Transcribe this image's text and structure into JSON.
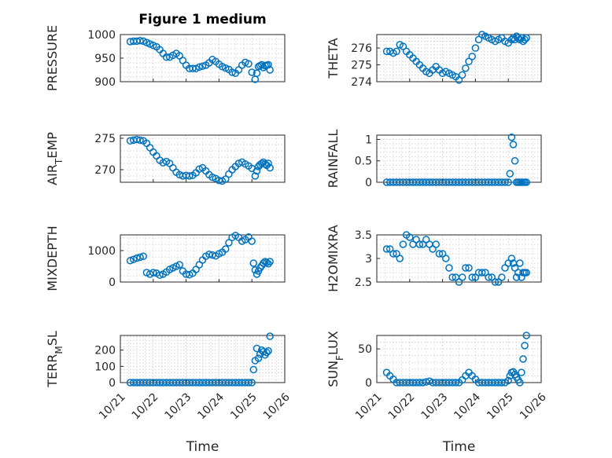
{
  "figure_title": "Figure 1 medium",
  "x_axis_label": "Time",
  "x_tick_labels": [
    "10/21",
    "10/22",
    "10/23",
    "10/24",
    "10/25",
    "10/26"
  ],
  "marker_color": "#0072bd",
  "chart_data": [
    {
      "id": "pressure",
      "type": "scatter",
      "title": "Figure 1 medium",
      "ylabel_parts": [
        "PRESSURE"
      ],
      "xlim": [
        0,
        5
      ],
      "ylim": [
        900,
        1000
      ],
      "yticks": [
        900,
        950,
        1000
      ],
      "x": [
        0.3,
        0.4,
        0.5,
        0.6,
        0.7,
        0.8,
        0.9,
        1.0,
        1.1,
        1.2,
        1.3,
        1.4,
        1.5,
        1.6,
        1.7,
        1.8,
        1.9,
        2.0,
        2.1,
        2.2,
        2.3,
        2.4,
        2.5,
        2.6,
        2.7,
        2.8,
        2.9,
        3.0,
        3.1,
        3.2,
        3.3,
        3.4,
        3.5,
        3.6,
        3.7,
        3.8,
        3.9,
        4.0,
        4.1,
        4.15,
        4.2,
        4.25,
        4.3,
        4.35,
        4.4,
        4.45,
        4.5,
        4.55
      ],
      "y": [
        985,
        986,
        986,
        987,
        986,
        983,
        980,
        977,
        974,
        968,
        960,
        952,
        952,
        956,
        960,
        955,
        945,
        935,
        928,
        928,
        928,
        931,
        933,
        935,
        940,
        947,
        943,
        937,
        932,
        929,
        926,
        920,
        918,
        925,
        935,
        941,
        938,
        920,
        905,
        918,
        932,
        934,
        936,
        930,
        934,
        935,
        936,
        925
      ]
    },
    {
      "id": "theta",
      "type": "scatter",
      "ylabel_parts": [
        "THETA"
      ],
      "xlim": [
        0,
        5
      ],
      "ylim": [
        274,
        276.8
      ],
      "yticks": [
        274,
        275,
        276
      ],
      "x": [
        0.3,
        0.4,
        0.5,
        0.6,
        0.7,
        0.8,
        0.9,
        1.0,
        1.1,
        1.2,
        1.3,
        1.4,
        1.5,
        1.6,
        1.7,
        1.8,
        1.9,
        2.0,
        2.1,
        2.2,
        2.3,
        2.4,
        2.5,
        2.6,
        2.7,
        2.8,
        2.9,
        3.0,
        3.1,
        3.2,
        3.3,
        3.4,
        3.5,
        3.6,
        3.7,
        3.8,
        3.9,
        4.0,
        4.1,
        4.15,
        4.2,
        4.25,
        4.3,
        4.35,
        4.4,
        4.45,
        4.5,
        4.55
      ],
      "y": [
        275.8,
        275.8,
        275.7,
        275.8,
        276.2,
        276.1,
        275.8,
        275.6,
        275.4,
        275.2,
        275.0,
        274.8,
        274.6,
        274.5,
        274.7,
        274.9,
        274.7,
        274.5,
        274.6,
        274.5,
        274.4,
        274.3,
        274.1,
        274.4,
        274.8,
        275.2,
        275.5,
        276.0,
        276.5,
        276.8,
        276.7,
        276.6,
        276.5,
        276.4,
        276.5,
        276.6,
        276.4,
        276.3,
        276.5,
        276.6,
        276.5,
        276.7,
        276.6,
        276.5,
        276.6,
        276.4,
        276.5,
        276.6
      ]
    },
    {
      "id": "air_temp",
      "type": "scatter",
      "ylabel_parts": [
        "AIR",
        "T",
        "EMP"
      ],
      "xlim": [
        0,
        5
      ],
      "ylim": [
        268,
        275.5
      ],
      "yticks": [
        270,
        275
      ],
      "x": [
        0.3,
        0.4,
        0.5,
        0.6,
        0.7,
        0.8,
        0.9,
        1.0,
        1.1,
        1.2,
        1.3,
        1.4,
        1.5,
        1.6,
        1.7,
        1.8,
        1.9,
        2.0,
        2.1,
        2.2,
        2.3,
        2.4,
        2.5,
        2.6,
        2.7,
        2.8,
        2.9,
        3.0,
        3.1,
        3.2,
        3.3,
        3.4,
        3.5,
        3.6,
        3.7,
        3.8,
        3.9,
        4.0,
        4.1,
        4.15,
        4.2,
        4.25,
        4.3,
        4.35,
        4.4,
        4.45,
        4.5,
        4.55
      ],
      "y": [
        274.6,
        274.7,
        274.8,
        274.7,
        274.6,
        274.2,
        273.5,
        272.8,
        272.2,
        271.5,
        271.1,
        271.3,
        271.0,
        270.3,
        269.6,
        269.2,
        269.0,
        269.1,
        269.0,
        269.1,
        269.5,
        270.1,
        270.3,
        269.8,
        269.2,
        268.8,
        268.6,
        268.3,
        268.2,
        268.5,
        269.3,
        270.0,
        270.5,
        271.0,
        271.2,
        270.9,
        270.6,
        270.2,
        269.0,
        269.8,
        270.5,
        270.8,
        271.0,
        271.2,
        270.9,
        270.7,
        271.0,
        270.3
      ]
    },
    {
      "id": "rainfall",
      "type": "scatter",
      "ylabel_parts": [
        "RAINFALL"
      ],
      "xlim": [
        0,
        5
      ],
      "ylim": [
        0,
        1.1
      ],
      "yticks": [
        0,
        0.5,
        1
      ],
      "ytick_labels": [
        "0",
        "0.5",
        "1"
      ],
      "x": [
        0.3,
        0.4,
        0.5,
        0.6,
        0.7,
        0.8,
        0.9,
        1.0,
        1.1,
        1.2,
        1.3,
        1.4,
        1.5,
        1.6,
        1.7,
        1.8,
        1.9,
        2.0,
        2.1,
        2.2,
        2.3,
        2.4,
        2.5,
        2.6,
        2.7,
        2.8,
        2.9,
        3.0,
        3.1,
        3.2,
        3.3,
        3.4,
        3.5,
        3.6,
        3.7,
        3.8,
        3.9,
        4.0,
        4.05,
        4.1,
        4.15,
        4.2,
        4.25,
        4.3,
        4.35,
        4.4,
        4.45,
        4.5,
        4.55
      ],
      "y": [
        0,
        0,
        0,
        0,
        0,
        0,
        0,
        0,
        0,
        0,
        0,
        0,
        0,
        0,
        0,
        0,
        0,
        0,
        0,
        0,
        0,
        0,
        0,
        0,
        0,
        0,
        0,
        0,
        0,
        0,
        0,
        0,
        0,
        0,
        0,
        0,
        0,
        0,
        0.2,
        1.05,
        0.88,
        0.5,
        0,
        0,
        0,
        0,
        0,
        0,
        0
      ]
    },
    {
      "id": "mixdepth",
      "type": "scatter",
      "ylabel_parts": [
        "MIXDEPTH"
      ],
      "xlim": [
        0,
        5
      ],
      "ylim": [
        0,
        1500
      ],
      "yticks": [
        0,
        1000
      ],
      "x": [
        0.3,
        0.4,
        0.5,
        0.6,
        0.7,
        0.8,
        0.9,
        1.0,
        1.1,
        1.2,
        1.3,
        1.4,
        1.5,
        1.6,
        1.7,
        1.8,
        1.9,
        2.0,
        2.1,
        2.2,
        2.3,
        2.4,
        2.5,
        2.6,
        2.7,
        2.8,
        2.9,
        3.0,
        3.1,
        3.2,
        3.3,
        3.4,
        3.5,
        3.6,
        3.7,
        3.8,
        3.9,
        4.0,
        4.05,
        4.1,
        4.15,
        4.2,
        4.25,
        4.3,
        4.35,
        4.4,
        4.45,
        4.5,
        4.55
      ],
      "y": [
        680,
        720,
        760,
        790,
        820,
        300,
        250,
        300,
        280,
        220,
        250,
        320,
        400,
        450,
        500,
        550,
        350,
        250,
        230,
        280,
        400,
        550,
        700,
        820,
        880,
        860,
        830,
        900,
        950,
        1050,
        1250,
        1420,
        1480,
        1420,
        1300,
        1350,
        1430,
        1300,
        600,
        380,
        250,
        350,
        450,
        520,
        600,
        650,
        620,
        580,
        650
      ]
    },
    {
      "id": "h2omixra",
      "type": "scatter",
      "ylabel_parts": [
        "H2OMIXRA"
      ],
      "xlim": [
        0,
        5
      ],
      "ylim": [
        2.5,
        3.5
      ],
      "yticks": [
        2.5,
        3,
        3.5
      ],
      "x": [
        0.3,
        0.4,
        0.5,
        0.6,
        0.7,
        0.8,
        0.9,
        1.0,
        1.1,
        1.2,
        1.3,
        1.4,
        1.5,
        1.6,
        1.7,
        1.8,
        1.9,
        2.0,
        2.1,
        2.2,
        2.3,
        2.4,
        2.5,
        2.6,
        2.7,
        2.8,
        2.9,
        3.0,
        3.1,
        3.2,
        3.3,
        3.4,
        3.5,
        3.6,
        3.7,
        3.8,
        3.9,
        4.0,
        4.1,
        4.15,
        4.2,
        4.25,
        4.3,
        4.35,
        4.4,
        4.45,
        4.5,
        4.55
      ],
      "y": [
        3.2,
        3.2,
        3.1,
        3.1,
        3.0,
        3.3,
        3.5,
        3.45,
        3.3,
        3.4,
        3.3,
        3.3,
        3.4,
        3.3,
        3.2,
        3.3,
        3.1,
        3.1,
        3.0,
        2.8,
        2.6,
        2.6,
        2.5,
        2.6,
        2.8,
        2.8,
        2.6,
        2.6,
        2.7,
        2.7,
        2.7,
        2.6,
        2.6,
        2.5,
        2.5,
        2.6,
        2.8,
        2.9,
        3.0,
        2.9,
        2.8,
        2.6,
        2.7,
        2.9,
        2.6,
        2.7,
        2.7,
        2.7
      ]
    },
    {
      "id": "terr_msl",
      "type": "scatter",
      "ylabel_parts": [
        "TERR",
        "M",
        "SL"
      ],
      "xlim": [
        0,
        5
      ],
      "ylim": [
        0,
        290
      ],
      "yticks": [
        0,
        100,
        200
      ],
      "x": [
        0.3,
        0.4,
        0.5,
        0.6,
        0.7,
        0.8,
        0.9,
        1.0,
        1.1,
        1.2,
        1.3,
        1.4,
        1.5,
        1.6,
        1.7,
        1.8,
        1.9,
        2.0,
        2.1,
        2.2,
        2.3,
        2.4,
        2.5,
        2.6,
        2.7,
        2.8,
        2.9,
        3.0,
        3.1,
        3.2,
        3.3,
        3.4,
        3.5,
        3.6,
        3.7,
        3.8,
        3.9,
        4.0,
        4.05,
        4.1,
        4.15,
        4.2,
        4.25,
        4.3,
        4.35,
        4.4,
        4.45,
        4.5,
        4.55
      ],
      "y": [
        0,
        0,
        0,
        0,
        0,
        0,
        0,
        0,
        0,
        0,
        0,
        0,
        0,
        0,
        0,
        0,
        0,
        0,
        0,
        0,
        0,
        0,
        0,
        0,
        0,
        0,
        0,
        0,
        0,
        0,
        0,
        0,
        0,
        0,
        0,
        0,
        0,
        0,
        80,
        135,
        210,
        150,
        175,
        200,
        190,
        170,
        185,
        195,
        285
      ]
    },
    {
      "id": "sun_flux",
      "type": "scatter",
      "ylabel_parts": [
        "SUN",
        "F",
        "LUX"
      ],
      "xlim": [
        0,
        5
      ],
      "ylim": [
        0,
        70
      ],
      "yticks": [
        0,
        50
      ],
      "x": [
        0.3,
        0.4,
        0.5,
        0.6,
        0.7,
        0.8,
        0.9,
        1.0,
        1.1,
        1.2,
        1.3,
        1.4,
        1.5,
        1.6,
        1.7,
        1.8,
        1.9,
        2.0,
        2.1,
        2.2,
        2.3,
        2.4,
        2.5,
        2.6,
        2.7,
        2.8,
        2.9,
        3.0,
        3.1,
        3.2,
        3.3,
        3.4,
        3.5,
        3.6,
        3.7,
        3.8,
        3.9,
        4.0,
        4.05,
        4.1,
        4.15,
        4.2,
        4.25,
        4.3,
        4.35,
        4.4,
        4.45,
        4.5,
        4.55
      ],
      "y": [
        15,
        10,
        5,
        0,
        0,
        0,
        0,
        0,
        0,
        0,
        0,
        0,
        1,
        2,
        0,
        0,
        0,
        0,
        0,
        0,
        0,
        0,
        0,
        4,
        10,
        15,
        10,
        5,
        0,
        0,
        0,
        0,
        0,
        0,
        0,
        0,
        0,
        3,
        10,
        15,
        16,
        12,
        8,
        4,
        0,
        15,
        35,
        55,
        70
      ]
    }
  ]
}
